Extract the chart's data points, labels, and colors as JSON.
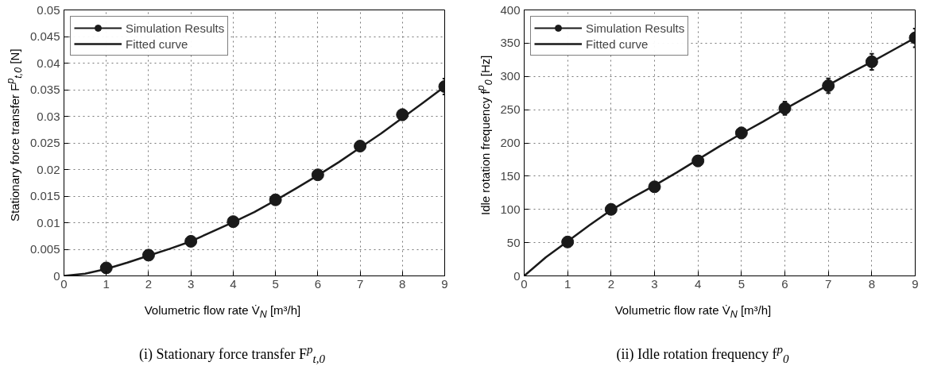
{
  "chart_data": [
    {
      "type": "scatter",
      "xlabel": "Volumetric flow rate V̇$_{N}$ [m³/h]",
      "ylabel": "Stationary force transfer F$^{p}$$_{t,0}$ [N]",
      "annotations": [
        "(i) Stationary force transfer F$^{p}$$_{t,0}$"
      ],
      "xlim": [
        0,
        9
      ],
      "ylim": [
        0,
        0.05
      ],
      "xticks": [
        0,
        1,
        2,
        3,
        4,
        5,
        6,
        7,
        8,
        9
      ],
      "yticks": [
        0,
        0.005,
        0.01,
        0.015,
        0.02,
        0.025,
        0.03,
        0.035,
        0.04,
        0.045,
        0.05
      ],
      "grid": true,
      "legend": "top left",
      "series": [
        {
          "name": "Simulation Results",
          "marker": "circle",
          "color": "#1a1a1a",
          "x": [
            1,
            2,
            3,
            4,
            5,
            6,
            7,
            8,
            9
          ],
          "values": [
            0.0015,
            0.0039,
            0.0065,
            0.0102,
            0.0143,
            0.019,
            0.0244,
            0.0303,
            0.0356
          ],
          "errors": [
            0.0002,
            0.0002,
            0.0002,
            0.0003,
            0.0003,
            0.0003,
            0.0007,
            0.001,
            0.0015
          ]
        },
        {
          "name": "Fitted curve",
          "type": "line",
          "color": "#1a1a1a",
          "x": [
            0,
            0.5,
            1,
            1.5,
            2,
            2.5,
            3,
            3.5,
            4,
            4.5,
            5,
            5.5,
            6,
            6.5,
            7,
            7.5,
            8,
            8.5,
            9
          ],
          "values": [
            0,
            0.0004,
            0.0013,
            0.0025,
            0.0038,
            0.0051,
            0.0065,
            0.0083,
            0.0101,
            0.012,
            0.0142,
            0.0165,
            0.0189,
            0.0214,
            0.0241,
            0.0268,
            0.0297,
            0.0326,
            0.0356
          ]
        }
      ]
    },
    {
      "type": "scatter",
      "xlabel": "Volumetric flow rate V̇$_{N}$ [m³/h]",
      "ylabel": "Idle rotation frequency f$^{p}$$_{0}$ [Hz]",
      "annotations": [
        "(ii) Idle rotation frequency f$^{p}$$_{0}$"
      ],
      "xlim": [
        0,
        9
      ],
      "ylim": [
        0,
        400
      ],
      "xticks": [
        0,
        1,
        2,
        3,
        4,
        5,
        6,
        7,
        8,
        9
      ],
      "yticks": [
        0,
        50,
        100,
        150,
        200,
        250,
        300,
        350,
        400
      ],
      "grid": true,
      "legend": "top left",
      "series": [
        {
          "name": "Simulation Results",
          "marker": "circle",
          "color": "#1a1a1a",
          "x": [
            1,
            2,
            3,
            4,
            5,
            6,
            7,
            8,
            9
          ],
          "values": [
            51,
            100,
            134,
            173,
            215,
            252,
            286,
            322,
            358
          ],
          "errors": [
            2,
            3,
            4,
            8,
            8,
            10,
            11,
            12,
            14
          ]
        },
        {
          "name": "Fitted curve",
          "type": "line",
          "color": "#1a1a1a",
          "x": [
            0,
            0.5,
            1,
            1.5,
            2,
            2.5,
            3,
            3.5,
            4,
            4.5,
            5,
            5.5,
            6,
            6.5,
            7,
            7.5,
            8,
            8.5,
            9
          ],
          "values": [
            0,
            28,
            52,
            76,
            99,
            118,
            136,
            155,
            175,
            195,
            214,
            232,
            251,
            269,
            287,
            305,
            322,
            340,
            358
          ]
        }
      ]
    }
  ]
}
